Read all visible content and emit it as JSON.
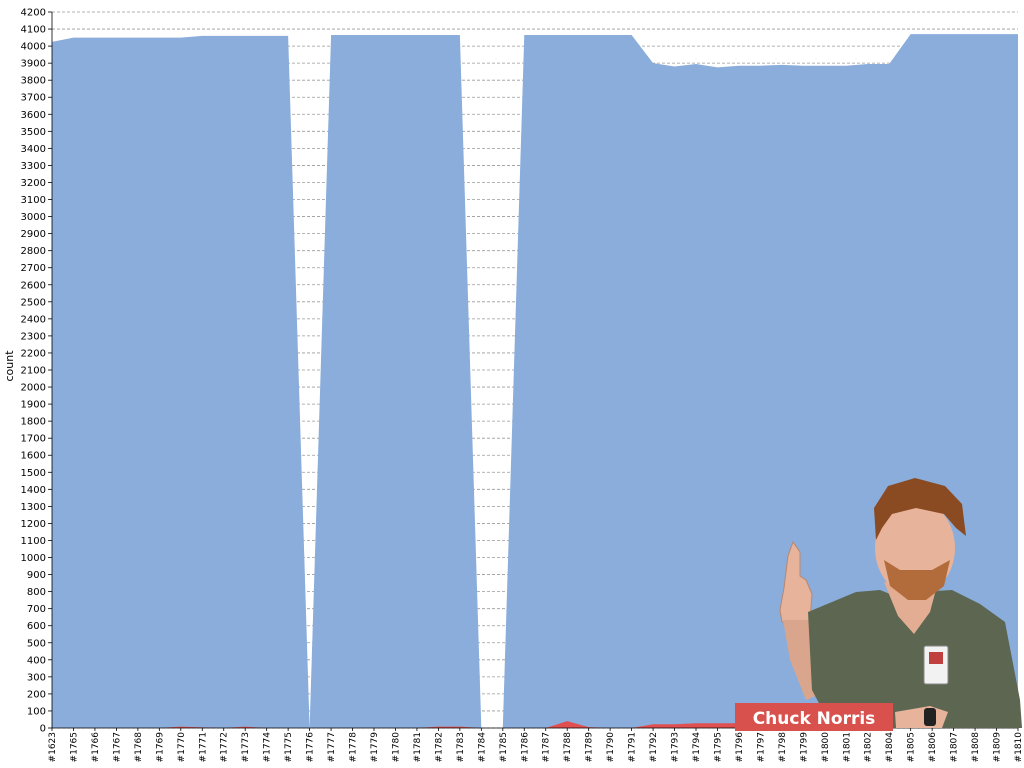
{
  "chart_data": {
    "type": "area",
    "ylabel": "count",
    "ylim": [
      0,
      4200
    ],
    "ytick_step": 100,
    "grid": "horizontal-dashed",
    "categories": [
      "#1623",
      "#1765",
      "#1766",
      "#1767",
      "#1768",
      "#1769",
      "#1770",
      "#1771",
      "#1772",
      "#1773",
      "#1774",
      "#1775",
      "#1776",
      "#1777",
      "#1778",
      "#1779",
      "#1780",
      "#1781",
      "#1782",
      "#1783",
      "#1784",
      "#1785",
      "#1786",
      "#1787",
      "#1788",
      "#1789",
      "#1790",
      "#1791",
      "#1792",
      "#1793",
      "#1794",
      "#1795",
      "#1796",
      "#1797",
      "#1798",
      "#1799",
      "#1800",
      "#1801",
      "#1802",
      "#1804",
      "#1805",
      "#1806",
      "#1807",
      "#1808",
      "#1809",
      "#1810"
    ],
    "series": [
      {
        "color": "#8aaddb",
        "values": [
          4025,
          4050,
          4050,
          4050,
          4050,
          4050,
          4050,
          4060,
          4060,
          4060,
          4060,
          4060,
          0,
          4065,
          4065,
          4065,
          4065,
          4065,
          4065,
          4065,
          0,
          0,
          4065,
          4065,
          4065,
          4065,
          4065,
          4065,
          3900,
          3880,
          3895,
          3875,
          3885,
          3885,
          3890,
          3885,
          3885,
          3885,
          3895,
          3895,
          4070,
          4070,
          4070,
          4070,
          4070,
          4070
        ]
      },
      {
        "color": "#e05050",
        "values": [
          0,
          0,
          0,
          0,
          0,
          0,
          8,
          4,
          0,
          8,
          0,
          0,
          0,
          0,
          0,
          0,
          0,
          0,
          8,
          8,
          0,
          0,
          0,
          0,
          40,
          5,
          0,
          0,
          22,
          22,
          28,
          28,
          28,
          28,
          28,
          28,
          28,
          28,
          28,
          28,
          28,
          28,
          28,
          28,
          28,
          28
        ]
      }
    ]
  },
  "overlay": {
    "caption": "Chuck Norris",
    "caption_bg": "#d9514d"
  }
}
